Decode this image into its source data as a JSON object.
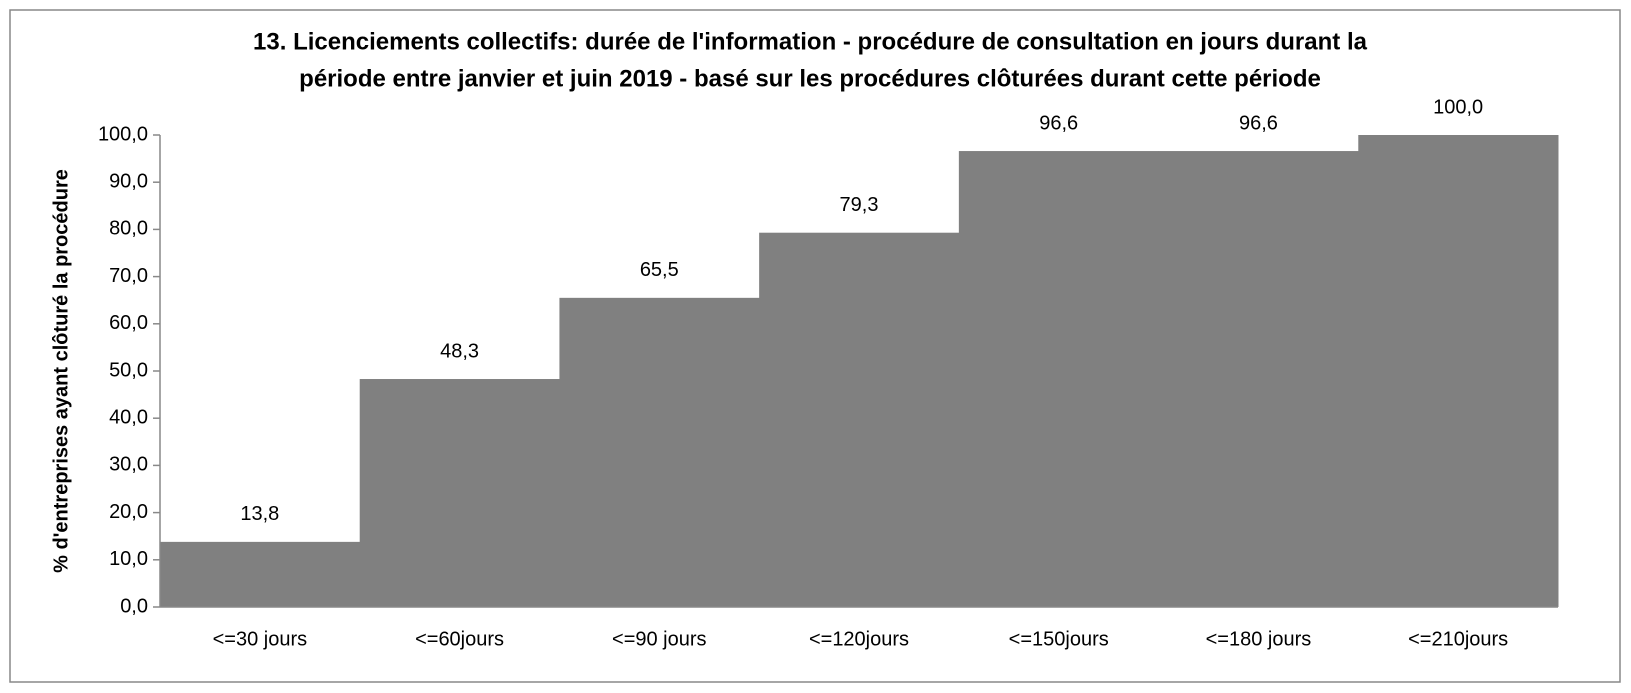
{
  "chart_data": {
    "type": "bar",
    "title": [
      "13. Licenciements collectifs:  durée de l'information - procédure de consultation en jours durant la",
      "période entre janvier et juin 2019  -  basé sur les procédures clôturées durant cette période"
    ],
    "y_label": "% d'entreprises ayant clôturé la procédure",
    "categories": [
      "<=30 jours",
      "<=60jours",
      "<=90 jours",
      "<=120jours",
      "<=150jours",
      "<=180 jours",
      "<=210jours"
    ],
    "values": [
      13.8,
      48.3,
      65.5,
      79.3,
      96.6,
      96.6,
      100.0
    ],
    "value_labels": [
      "13,8",
      "48,3",
      "65,5",
      "79,3",
      "96,6",
      "96,6",
      "100,0"
    ],
    "color": "#808080",
    "ylim": [
      0,
      100
    ],
    "yticks": [
      {
        "value": 0,
        "label": "0,0"
      },
      {
        "value": 10,
        "label": "10,0"
      },
      {
        "value": 20,
        "label": "20,0"
      },
      {
        "value": 30,
        "label": "30,0"
      },
      {
        "value": 40,
        "label": "40,0"
      },
      {
        "value": 50,
        "label": "50,0"
      },
      {
        "value": 60,
        "label": "60,0"
      },
      {
        "value": 70,
        "label": "70,0"
      },
      {
        "value": 80,
        "label": "80,0"
      },
      {
        "value": 90,
        "label": "90,0"
      },
      {
        "value": 100,
        "label": "100,0"
      }
    ],
    "grid": false
  }
}
